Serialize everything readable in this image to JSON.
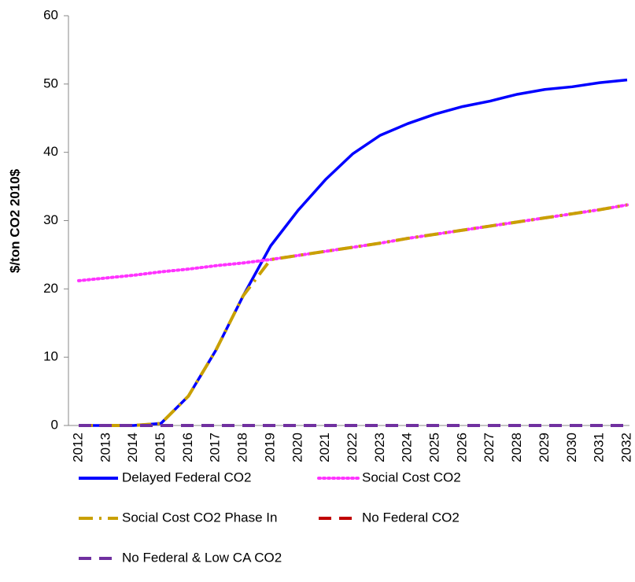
{
  "chart_data": {
    "type": "line",
    "y_label": "$/ton CO2 2010$",
    "categories": [
      "2012",
      "2013",
      "2014",
      "2015",
      "2016",
      "2017",
      "2018",
      "2019",
      "2020",
      "2021",
      "2022",
      "2023",
      "2024",
      "2025",
      "2026",
      "2027",
      "2028",
      "2029",
      "2030",
      "2031",
      "2032"
    ],
    "ylim": [
      0,
      60
    ],
    "yticks": [
      0,
      10,
      20,
      30,
      40,
      50,
      60
    ],
    "series": [
      {
        "name": "Delayed Federal CO2",
        "color": "#0000ff",
        "dash": "solid",
        "values": [
          0,
          0,
          0,
          0.3,
          4.3,
          11,
          19,
          26.3,
          31.5,
          36,
          39.8,
          42.5,
          44.2,
          45.6,
          46.7,
          47.5,
          48.5,
          49.2,
          49.6,
          50.2,
          50.6
        ]
      },
      {
        "name": "Social Cost CO2",
        "color": "#ff33ff",
        "dash": "dot",
        "values": [
          21.2,
          21.6,
          22.0,
          22.5,
          22.9,
          23.4,
          23.8,
          24.3,
          24.9,
          25.5,
          26.1,
          26.7,
          27.4,
          28.0,
          28.6,
          29.2,
          29.8,
          30.4,
          31.0,
          31.6,
          32.3
        ]
      },
      {
        "name": "Social Cost CO2 Phase In",
        "color": "#c9a000",
        "dash": "dashdot",
        "values": [
          0,
          0,
          0,
          0.3,
          4.3,
          11,
          19,
          24.3,
          24.9,
          25.5,
          26.1,
          26.7,
          27.4,
          28.0,
          28.6,
          29.2,
          29.8,
          30.4,
          31.0,
          31.6,
          32.3
        ]
      },
      {
        "name": "No Federal CO2",
        "color": "#c00000",
        "dash": "dash",
        "values": [
          0,
          0,
          0,
          0,
          0,
          0,
          0,
          0,
          0,
          0,
          0,
          0,
          0,
          0,
          0,
          0,
          0,
          0,
          0,
          0,
          0
        ]
      },
      {
        "name": "No Federal & Low CA CO2",
        "color": "#7030a0",
        "dash": "dash",
        "values": [
          0,
          0,
          0,
          0,
          0,
          0,
          0,
          0,
          0,
          0,
          0,
          0,
          0,
          0,
          0,
          0,
          0,
          0,
          0,
          0,
          0
        ]
      }
    ]
  }
}
